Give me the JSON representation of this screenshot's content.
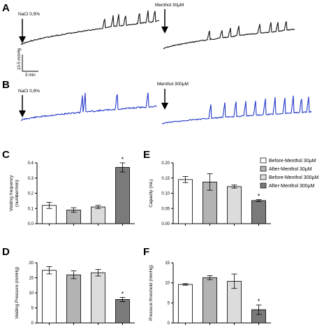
{
  "panel_labels": {
    "a": "A",
    "b": "B",
    "c": "C",
    "d": "D",
    "e": "E",
    "f": "F"
  },
  "traces": {
    "a_nacl": "NaCl 0,9%",
    "a_menthol": "Menthol 30μM",
    "b_nacl": "NaCl 0,9%",
    "b_menthol": "Menthol 300μM",
    "scale_y": "10.5 mmHg",
    "scale_x": "3 min",
    "color_a": "#111111",
    "color_b": "#2438c8"
  },
  "legend": {
    "items": [
      {
        "label": "Before-Menthol 30μM",
        "color": "#ffffff"
      },
      {
        "label": "After-Menthol 30μM",
        "color": "#b3b3b3"
      },
      {
        "label": "Before-Menthol 300μM",
        "color": "#dcdcdc"
      },
      {
        "label": "After-Menthol 300μM",
        "color": "#7a7a7a"
      }
    ]
  },
  "chart_data": [
    {
      "type": "bar",
      "panel": "C",
      "ylabel": "Voiding frequency\n(number/min)",
      "ylim": [
        0,
        0.4
      ],
      "yticks": [
        "0.0",
        "0.1",
        "0.2",
        "0.3",
        "0.4"
      ],
      "values": [
        0.12,
        0.09,
        0.11,
        0.37
      ],
      "errors": [
        0.02,
        0.015,
        0.01,
        0.03
      ],
      "significance": [
        "",
        "",
        "",
        "*"
      ]
    },
    {
      "type": "bar",
      "panel": "D",
      "ylabel": "Voiding Pressure (mmHg)",
      "ylim": [
        0,
        20
      ],
      "yticks": [
        "0",
        "5",
        "10",
        "15",
        "20"
      ],
      "values": [
        17.5,
        16.0,
        16.7,
        7.8
      ],
      "errors": [
        1.2,
        1.3,
        1.1,
        0.7
      ],
      "significance": [
        "",
        "",
        "",
        "*"
      ]
    },
    {
      "type": "bar",
      "panel": "E",
      "ylabel": "Capacity (mL)",
      "ylim": [
        0,
        0.2
      ],
      "yticks": [
        "0.00",
        "0.05",
        "0.10",
        "0.15",
        "0.20"
      ],
      "values": [
        0.145,
        0.137,
        0.122,
        0.076
      ],
      "errors": [
        0.01,
        0.027,
        0.005,
        0.003
      ],
      "significance": [
        "",
        "",
        "",
        "*"
      ]
    },
    {
      "type": "bar",
      "panel": "F",
      "ylabel": "Pressure threshold (mmHg)",
      "ylim": [
        0,
        15
      ],
      "yticks": [
        "0",
        "5",
        "10",
        "15"
      ],
      "values": [
        9.6,
        11.3,
        10.4,
        3.3
      ],
      "errors": [
        0.2,
        0.5,
        1.8,
        1.2
      ],
      "significance": [
        "",
        "",
        "",
        "*"
      ]
    }
  ]
}
